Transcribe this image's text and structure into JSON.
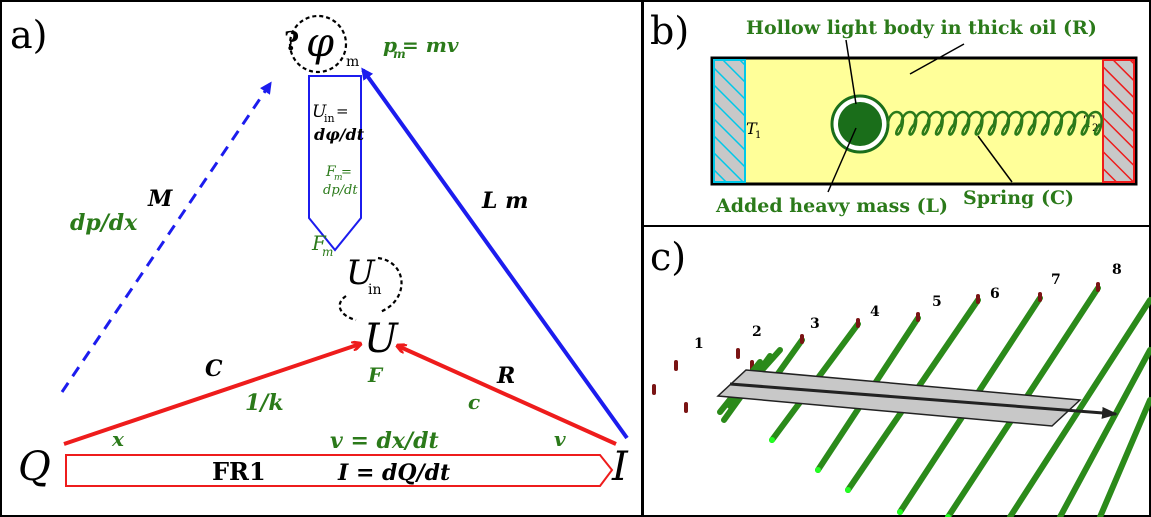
{
  "panels": {
    "a_label": "a)",
    "b_label": "b)",
    "c_label": "c)"
  },
  "panel_a": {
    "node_top_phi": "φ",
    "node_top_phi_sub": "m",
    "node_top_question": "?",
    "node_u_in": "U",
    "node_u_in_sub": "in",
    "node_u": "U",
    "node_q": "Q",
    "node_i": "I",
    "pm_eq": "= mv",
    "pm_p": "p",
    "pm_sub": "m",
    "uin_eq_line1": "U",
    "uin_eq_sub": "in",
    "uin_eq_eq": "=",
    "uin_eq_line2": "dφ/dt",
    "fm_eq_line1": "F",
    "fm_eq_sub": "m",
    "fm_eq_eq": "=",
    "fm_eq_line2": "dp/dt",
    "fm_label": "F",
    "fm_label_sub": "m",
    "M_label": "M",
    "dpdx_label": "dp/dx",
    "Lm_label": "L m",
    "C_label": "C",
    "k_label": "1/k",
    "F_label": "F",
    "R_label": "R",
    "c_label": "c",
    "x_label": "x",
    "v_label": "v",
    "v_eq": "v = dx/dt",
    "fr1_label": "FR1",
    "i_eq": "I = dQ/dt"
  },
  "panel_b": {
    "title": "Hollow light body in thick oil (R)",
    "t1": "T",
    "t1_sub": "1",
    "t2": "T",
    "t2_sub": "2",
    "mass_label": "Added heavy mass (L)",
    "spring_label": "Spring (C)"
  },
  "panel_c": {
    "numbers": [
      "1",
      "2",
      "3",
      "4",
      "5",
      "6",
      "7",
      "8"
    ]
  },
  "colors": {
    "red": "#ee1c1c",
    "blue": "#1c1cee",
    "green": "#2b7a1a",
    "yellow": "#ffff99",
    "cyan": "#00c8e8",
    "gray": "#c8c8c8",
    "dark_green": "#1a6e1a"
  }
}
